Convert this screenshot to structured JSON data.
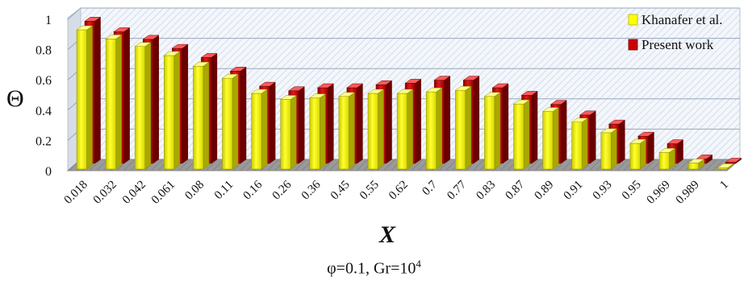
{
  "chart_data": {
    "type": "bar",
    "categories": [
      "0.018",
      "0.032",
      "0.042",
      "0.061",
      "0.08",
      "0.11",
      "0.16",
      "0.26",
      "0.36",
      "0.45",
      "0.55",
      "0.62",
      "0.7",
      "0.77",
      "0.83",
      "0.87",
      "0.89",
      "0.91",
      "0.93",
      "0.95",
      "0.969",
      "0.989",
      "1"
    ],
    "series": [
      {
        "name": "Khanafer et al.",
        "color": "#ffff00",
        "values": [
          0.92,
          0.86,
          0.81,
          0.75,
          0.68,
          0.6,
          0.5,
          0.46,
          0.47,
          0.48,
          0.5,
          0.5,
          0.51,
          0.52,
          0.48,
          0.43,
          0.38,
          0.31,
          0.24,
          0.17,
          0.11,
          0.04,
          0.0
        ]
      },
      {
        "name": "Present work",
        "color": "#cc0000",
        "values": [
          0.94,
          0.87,
          0.82,
          0.76,
          0.7,
          0.61,
          0.51,
          0.48,
          0.5,
          0.5,
          0.52,
          0.53,
          0.55,
          0.55,
          0.5,
          0.45,
          0.39,
          0.32,
          0.26,
          0.18,
          0.13,
          0.03,
          0.0
        ]
      }
    ],
    "ylim": [
      0,
      1
    ],
    "yticks": [
      "0",
      "0.2",
      "0.4",
      "0.6",
      "0.8",
      "1"
    ],
    "xlabel": "X",
    "ylabel": "Θ",
    "legend_position": "top-right",
    "grid": true,
    "caption": {
      "text": "φ=0.1, Gr=10",
      "superscript": "4"
    }
  }
}
